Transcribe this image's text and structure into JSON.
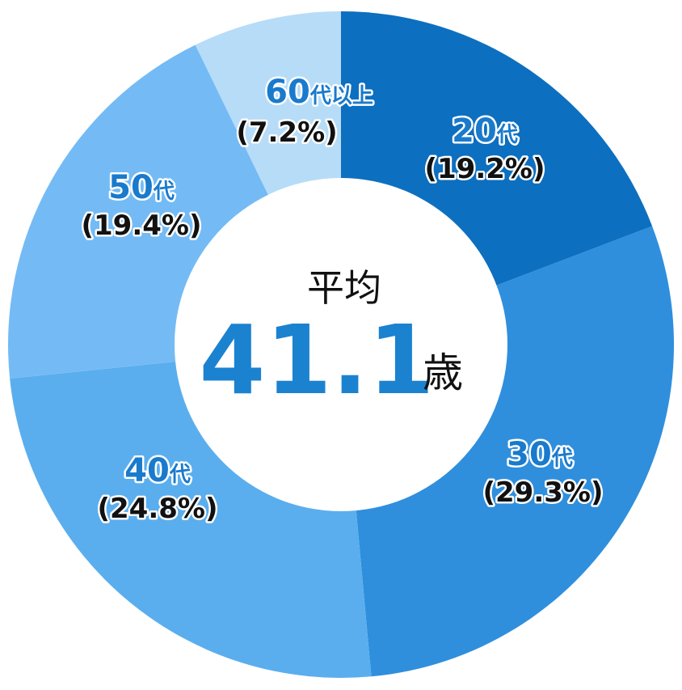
{
  "chart_data": {
    "type": "pie",
    "style": "donut",
    "start": "12 o'clock, clockwise",
    "categories": [
      {
        "num": "20",
        "suffix": "代"
      },
      {
        "num": "30",
        "suffix": "代"
      },
      {
        "num": "40",
        "suffix": "代"
      },
      {
        "num": "50",
        "suffix": "代"
      },
      {
        "num": "60",
        "suffix": "代以上"
      }
    ],
    "values": [
      19.2,
      29.3,
      24.8,
      19.4,
      7.2
    ],
    "value_labels": [
      "(19.2%)",
      "(29.3%)",
      "(24.8%)",
      "(19.4%)",
      "(7.2%)"
    ],
    "colors": [
      "#0d6fbf",
      "#2f8fdd",
      "#5aaeee",
      "#74bbf5",
      "#b6dcf8"
    ],
    "center": {
      "title": "平均",
      "value": "41.1",
      "unit": "歳",
      "value_color": "#1b82d0"
    },
    "label_color": "#1a7acc"
  }
}
